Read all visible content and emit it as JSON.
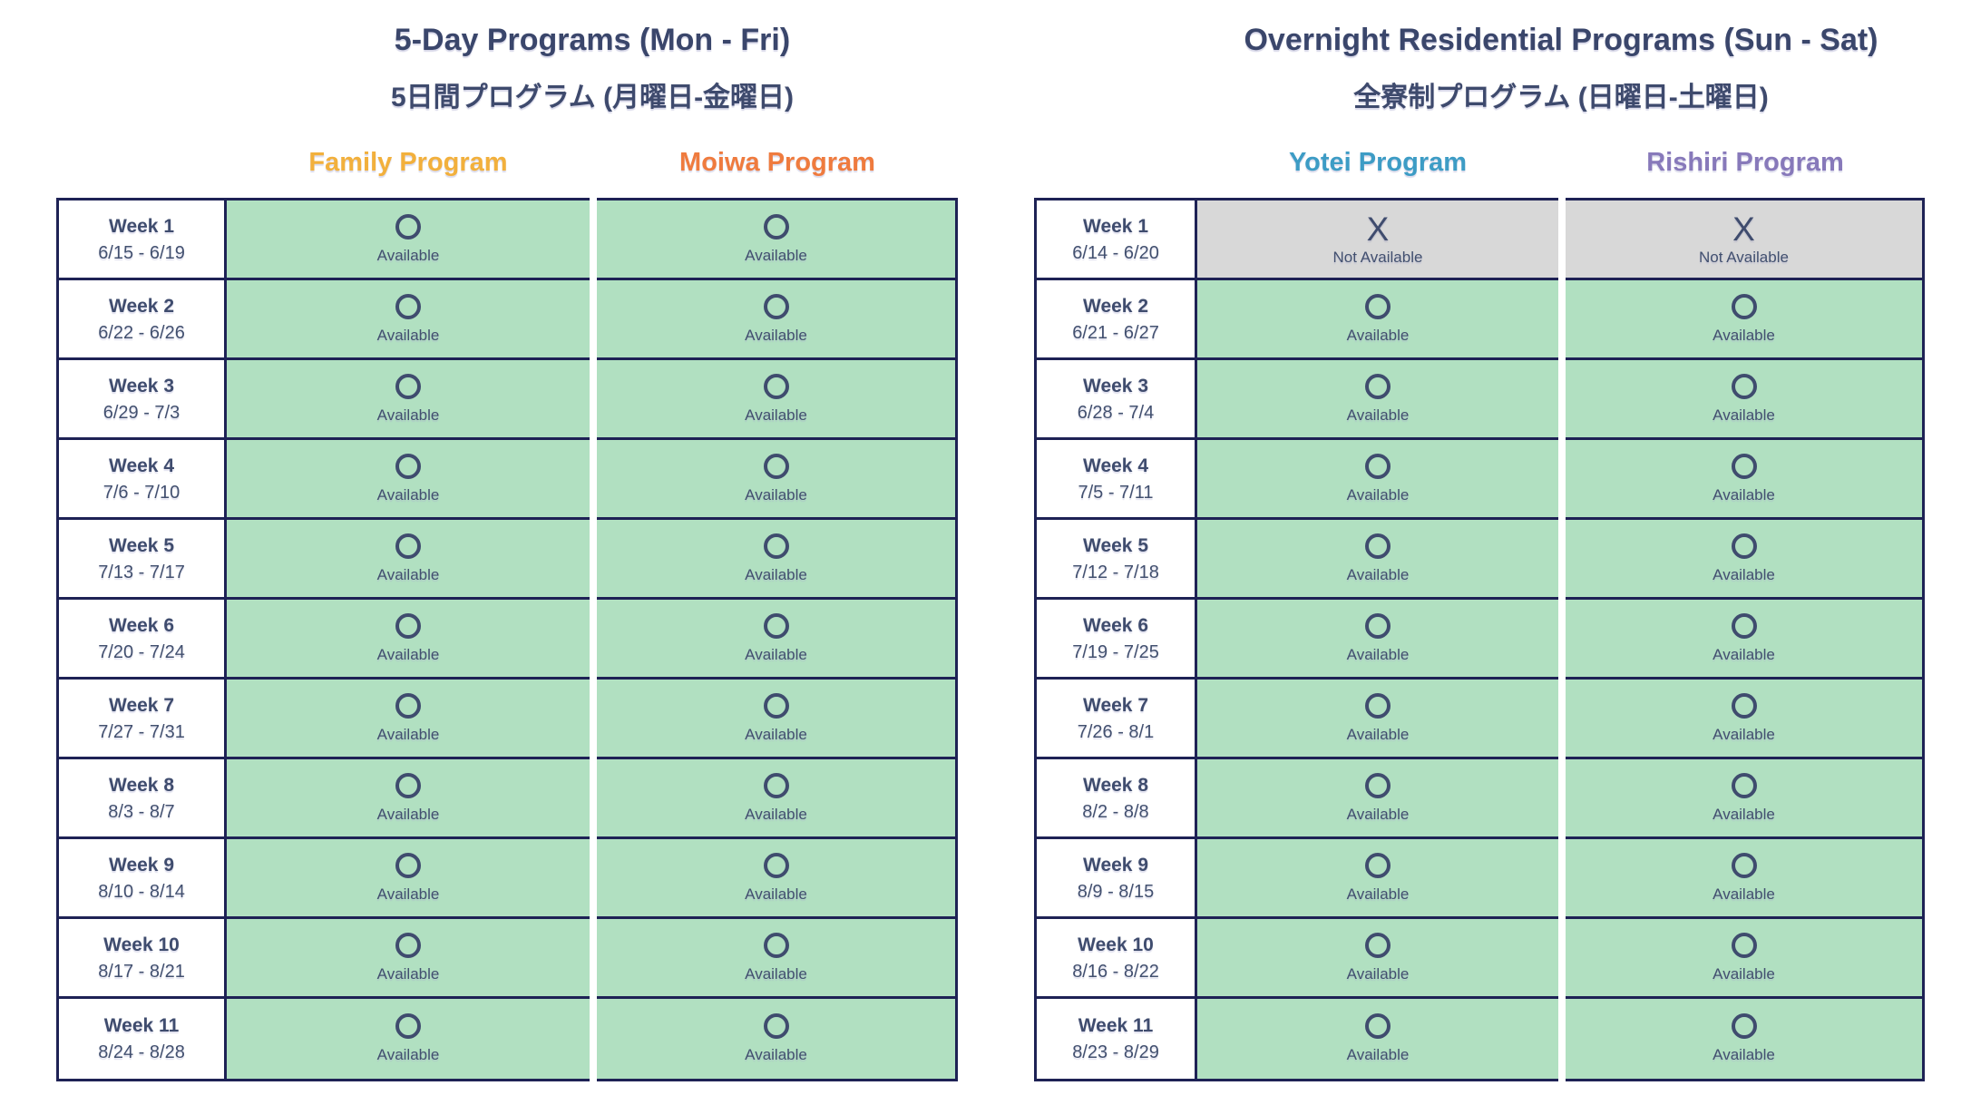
{
  "colors": {
    "border_navy": "#1e2255",
    "text_slate": "#404d70",
    "available_green": "#b1e0c1",
    "not_available_gray": "#d8d8d8",
    "family_program": "#f2b03c",
    "moiwa_program": "#ef7b3e",
    "yotei_program": "#3d9cc5",
    "rishiri_program": "#8779ba"
  },
  "status": {
    "available": {
      "symbol": "O",
      "label": "Available"
    },
    "not_available": {
      "symbol": "X",
      "label": "Not Available"
    }
  },
  "tables": [
    {
      "title": "5-Day Programs (Mon - Fri)",
      "subtitle": "5日間プログラム (月曜日-金曜日)",
      "programs": [
        {
          "name": "Family Program",
          "color": "#f2b03c"
        },
        {
          "name": "Moiwa Program",
          "color": "#ef7b3e"
        }
      ],
      "weeks": [
        {
          "label": "Week 1",
          "dates": "6/15 - 6/19",
          "availability": [
            "available",
            "available"
          ]
        },
        {
          "label": "Week 2",
          "dates": "6/22 - 6/26",
          "availability": [
            "available",
            "available"
          ]
        },
        {
          "label": "Week 3",
          "dates": "6/29 - 7/3",
          "availability": [
            "available",
            "available"
          ]
        },
        {
          "label": "Week 4",
          "dates": "7/6 - 7/10",
          "availability": [
            "available",
            "available"
          ]
        },
        {
          "label": "Week 5",
          "dates": "7/13 - 7/17",
          "availability": [
            "available",
            "available"
          ]
        },
        {
          "label": "Week 6",
          "dates": "7/20 - 7/24",
          "availability": [
            "available",
            "available"
          ]
        },
        {
          "label": "Week 7",
          "dates": "7/27 - 7/31",
          "availability": [
            "available",
            "available"
          ]
        },
        {
          "label": "Week 8",
          "dates": "8/3 - 8/7",
          "availability": [
            "available",
            "available"
          ]
        },
        {
          "label": "Week 9",
          "dates": "8/10 - 8/14",
          "availability": [
            "available",
            "available"
          ]
        },
        {
          "label": "Week 10",
          "dates": "8/17 - 8/21",
          "availability": [
            "available",
            "available"
          ]
        },
        {
          "label": "Week 11",
          "dates": "8/24 - 8/28",
          "availability": [
            "available",
            "available"
          ]
        }
      ]
    },
    {
      "title": "Overnight Residential Programs (Sun - Sat)",
      "subtitle": "全寮制プログラム (日曜日-土曜日)",
      "programs": [
        {
          "name": "Yotei Program",
          "color": "#3d9cc5"
        },
        {
          "name": "Rishiri Program",
          "color": "#8779ba"
        }
      ],
      "weeks": [
        {
          "label": "Week 1",
          "dates": "6/14 - 6/20",
          "availability": [
            "not_available",
            "not_available"
          ]
        },
        {
          "label": "Week 2",
          "dates": "6/21 - 6/27",
          "availability": [
            "available",
            "available"
          ]
        },
        {
          "label": "Week 3",
          "dates": "6/28 - 7/4",
          "availability": [
            "available",
            "available"
          ]
        },
        {
          "label": "Week 4",
          "dates": "7/5 - 7/11",
          "availability": [
            "available",
            "available"
          ]
        },
        {
          "label": "Week 5",
          "dates": "7/12 - 7/18",
          "availability": [
            "available",
            "available"
          ]
        },
        {
          "label": "Week 6",
          "dates": "7/19 - 7/25",
          "availability": [
            "available",
            "available"
          ]
        },
        {
          "label": "Week 7",
          "dates": "7/26 - 8/1",
          "availability": [
            "available",
            "available"
          ]
        },
        {
          "label": "Week 8",
          "dates": "8/2 - 8/8",
          "availability": [
            "available",
            "available"
          ]
        },
        {
          "label": "Week 9",
          "dates": "8/9 - 8/15",
          "availability": [
            "available",
            "available"
          ]
        },
        {
          "label": "Week 10",
          "dates": "8/16 - 8/22",
          "availability": [
            "available",
            "available"
          ]
        },
        {
          "label": "Week 11",
          "dates": "8/23 - 8/29",
          "availability": [
            "available",
            "available"
          ]
        }
      ]
    }
  ]
}
